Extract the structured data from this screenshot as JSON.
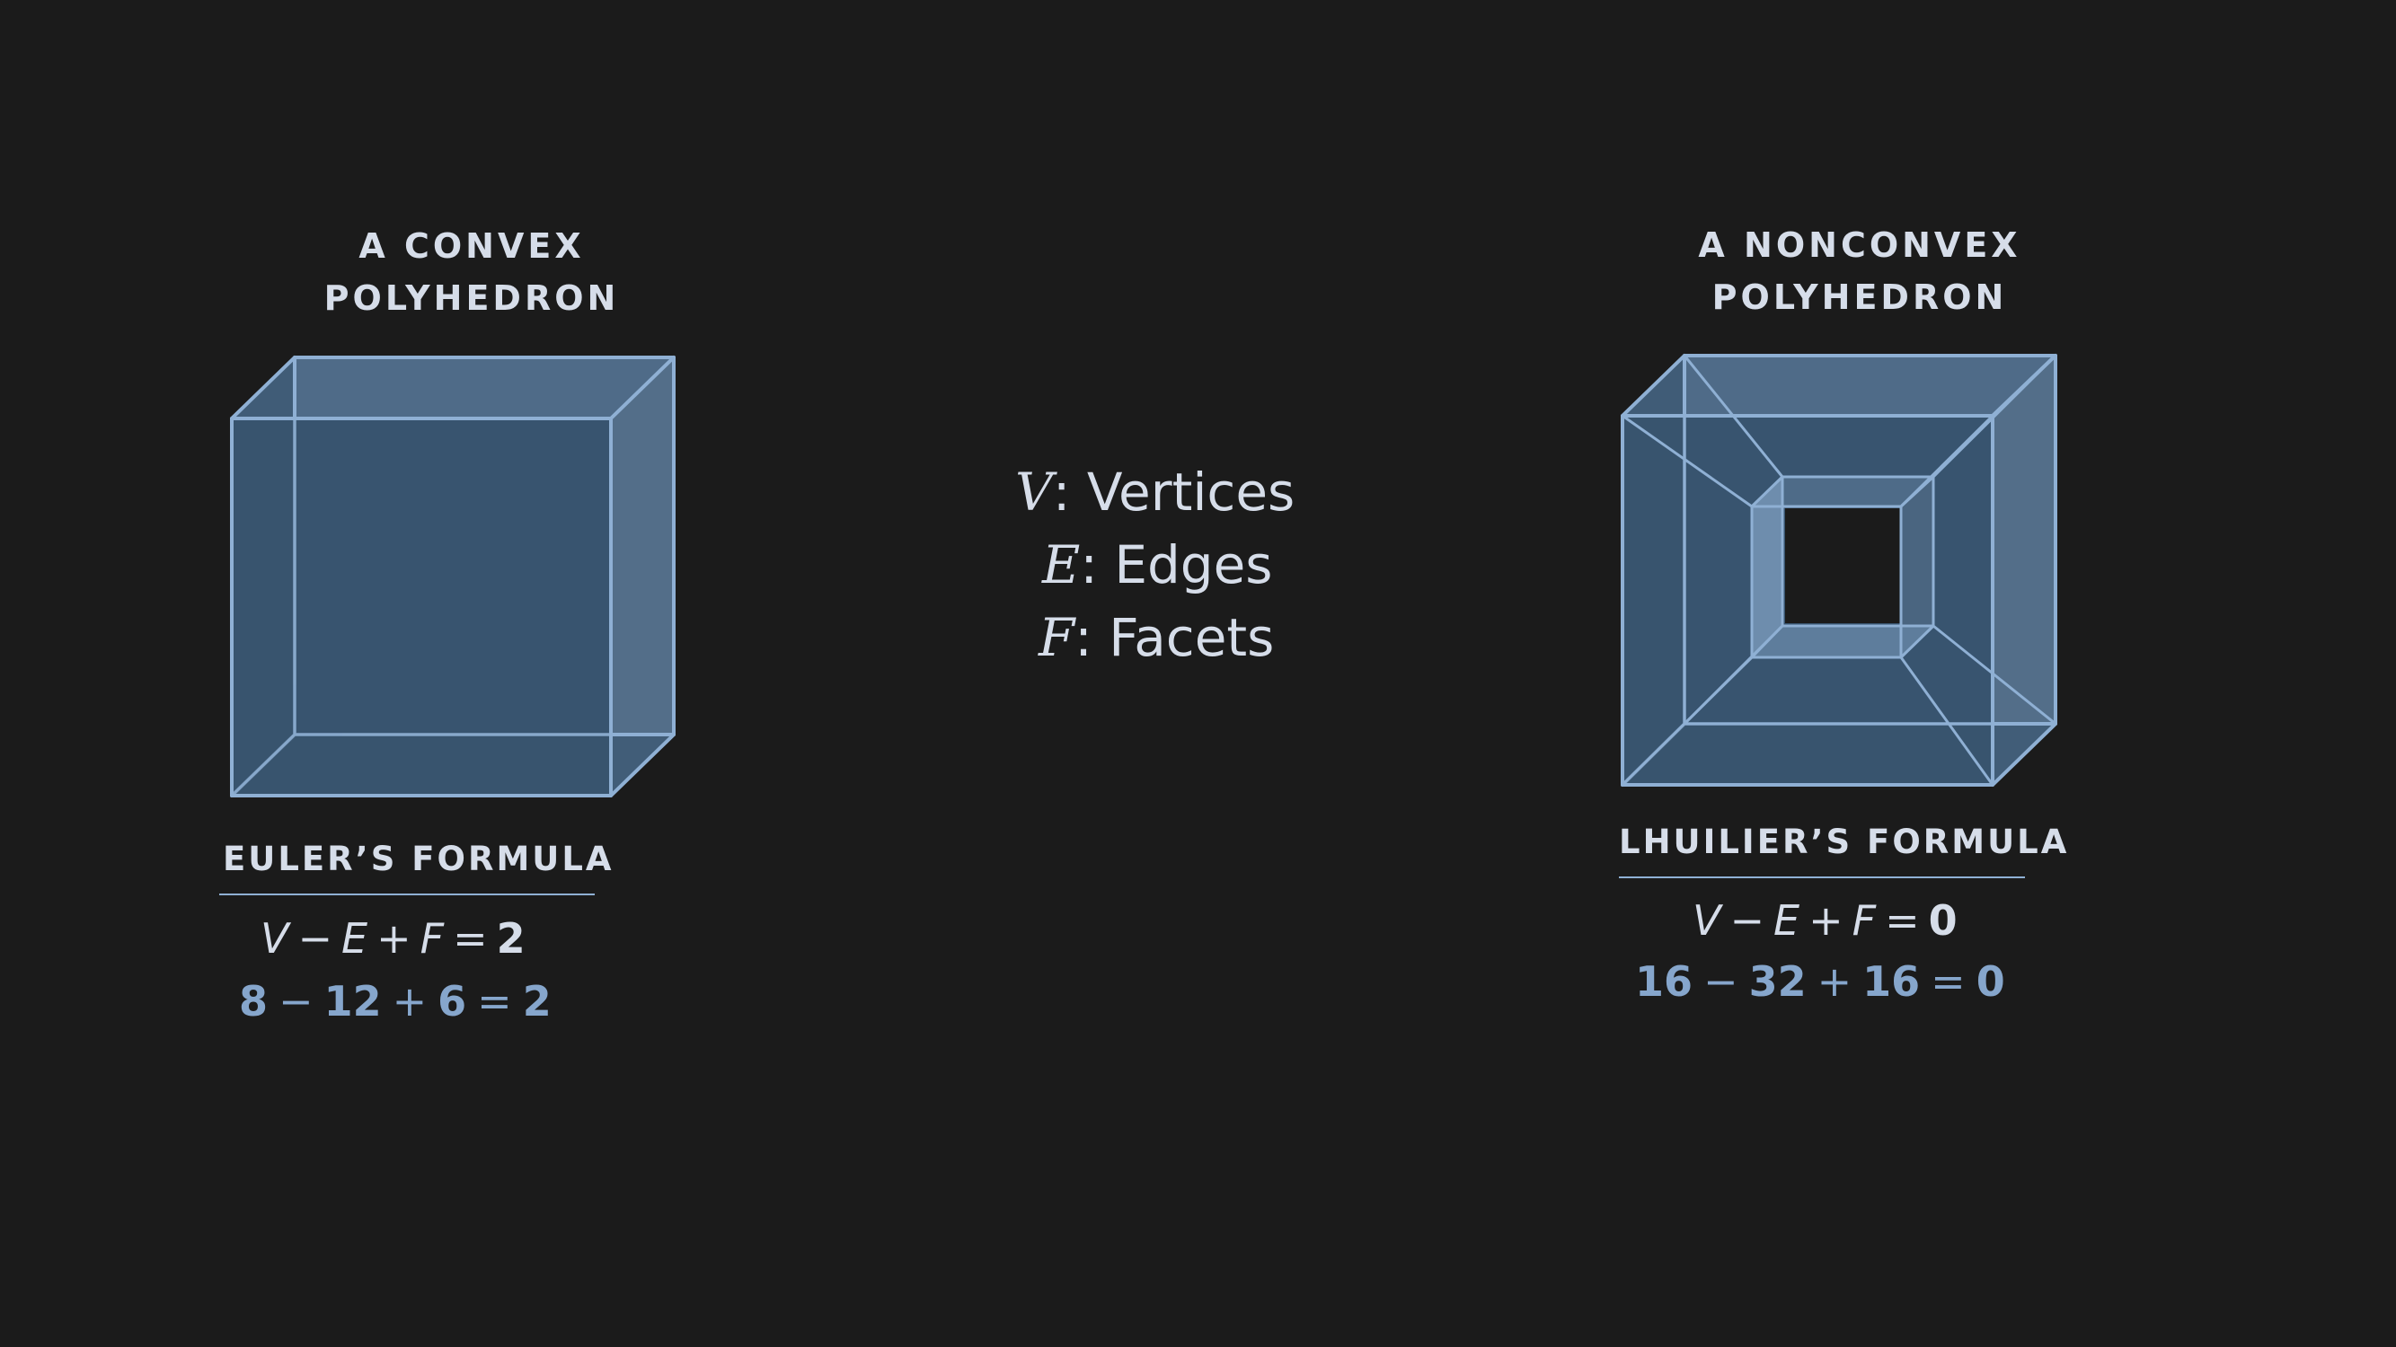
{
  "convex": {
    "caption_line1": "A CONVEX",
    "caption_line2": "POLYHEDRON",
    "formula_title": "EULER’S FORMULA",
    "equation": {
      "v": "V",
      "minus": "−",
      "e": "E",
      "plus": "+",
      "f": "F",
      "equals": "=",
      "rhs": "2"
    },
    "numbers": {
      "v": "8",
      "minus": "−",
      "e": "12",
      "plus": "+",
      "f": "6",
      "equals": "=",
      "rhs": "2"
    }
  },
  "nonconvex": {
    "caption_line1": "A NONCONVEX",
    "caption_line2": "POLYHEDRON",
    "formula_title": "LHUILIER’S FORMULA",
    "equation": {
      "v": "V",
      "minus": "−",
      "e": "E",
      "plus": "+",
      "f": "F",
      "equals": "=",
      "rhs": "0"
    },
    "numbers": {
      "v": "16",
      "minus": "−",
      "e": "32",
      "plus": "+",
      "f": "16",
      "equals": "=",
      "rhs": "0"
    }
  },
  "legend": [
    {
      "symbol": "V",
      "label": ": Vertices"
    },
    {
      "symbol": "E",
      "label": ": Edges"
    },
    {
      "symbol": "F",
      "label": ": Facets"
    }
  ],
  "colors": {
    "background": "#1b1b1b",
    "edge": "#8fb0d4",
    "face_front": "#37536f",
    "face_side": "#4f6a85",
    "text": "#d6dde9",
    "number_text": "#86a6cc"
  }
}
